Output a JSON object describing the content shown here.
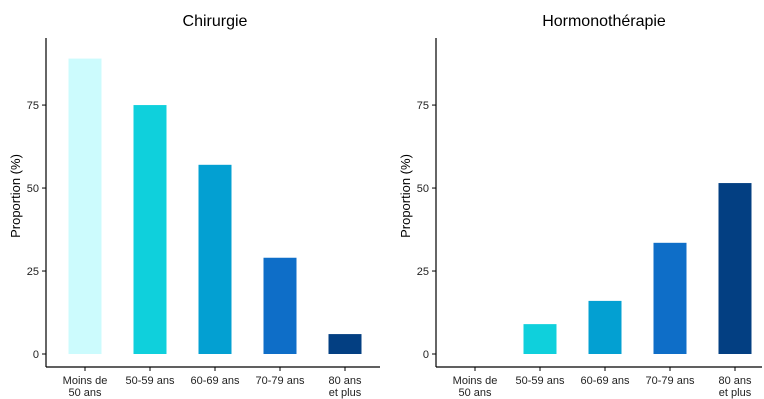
{
  "chart_data": [
    {
      "type": "bar",
      "title": "Chirurgie",
      "ylabel": "Proportion (%)",
      "xlabel": "",
      "ylim": [
        0,
        94
      ],
      "yticks": [
        0,
        25,
        50,
        75
      ],
      "grid": false,
      "categories": [
        [
          "Moins de",
          "50 ans"
        ],
        [
          "50-59 ans"
        ],
        [
          "60-69 ans"
        ],
        [
          "70-79 ans"
        ],
        [
          "80 ans",
          "et plus"
        ]
      ],
      "values": [
        89,
        75,
        57,
        29,
        6
      ],
      "colors": [
        "#ccfbfd",
        "#0fd0dc",
        "#03a0d2",
        "#0e6ec8",
        "#033f82"
      ]
    },
    {
      "type": "bar",
      "title": "Hormonothérapie",
      "ylabel": "Proportion (%)",
      "xlabel": "",
      "ylim": [
        0,
        94
      ],
      "yticks": [
        0,
        25,
        50,
        75
      ],
      "grid": false,
      "categories": [
        [
          "Moins de",
          "50 ans"
        ],
        [
          "50-59 ans"
        ],
        [
          "60-69 ans"
        ],
        [
          "70-79 ans"
        ],
        [
          "80 ans",
          "et plus"
        ]
      ],
      "values": [
        0,
        9,
        16,
        33.5,
        51.5
      ],
      "colors": [
        "#ccfbfd",
        "#0fd0dc",
        "#03a0d2",
        "#0e6ec8",
        "#033f82"
      ]
    }
  ]
}
